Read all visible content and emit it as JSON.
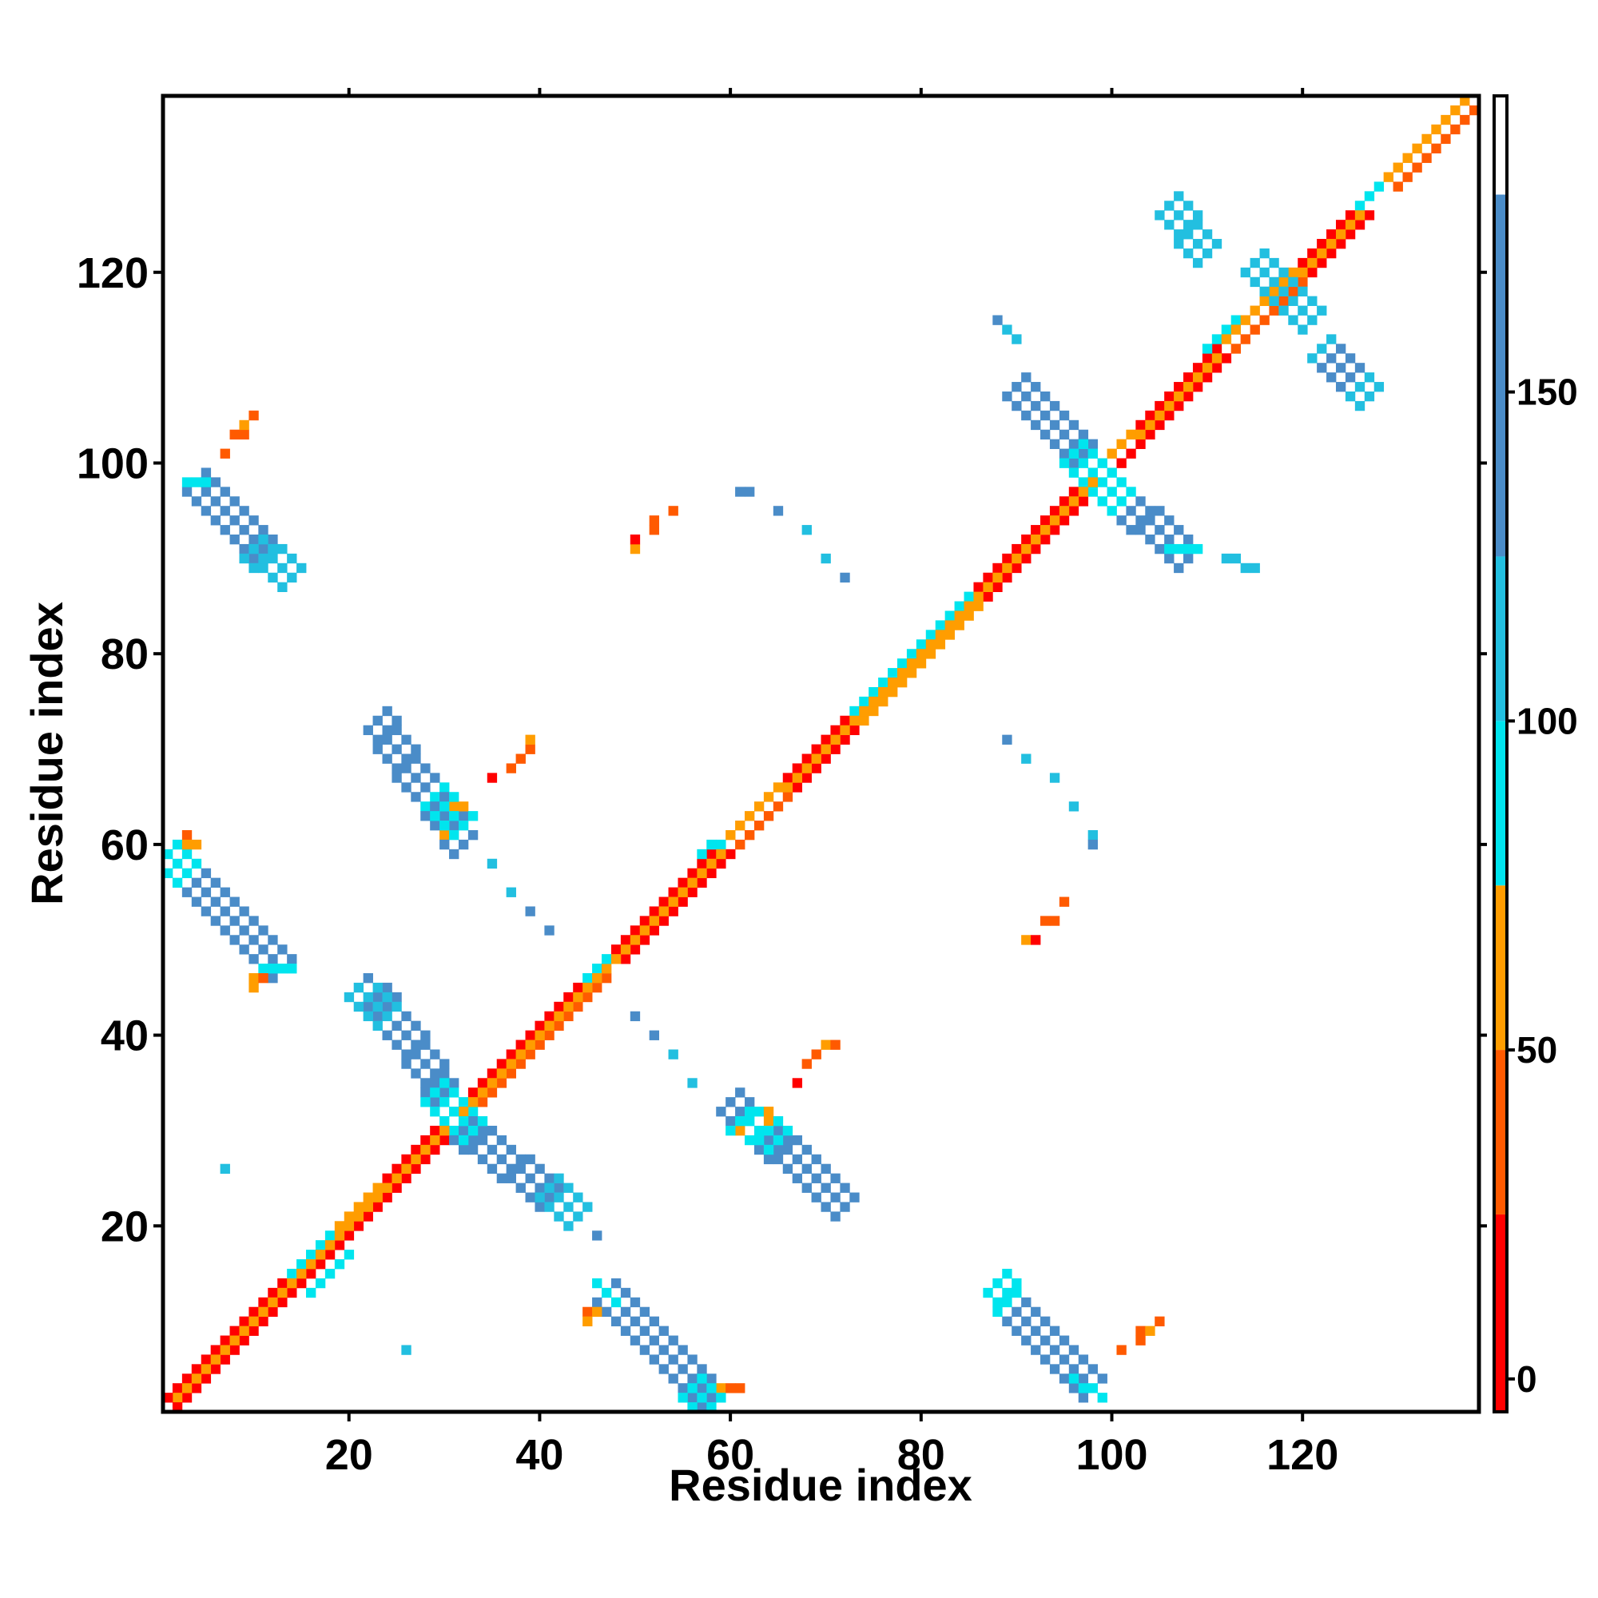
{
  "chart_data": {
    "type": "heatmap",
    "title": "",
    "xlabel": "Residue index",
    "ylabel": "Residue index",
    "xlim": [
      1,
      138
    ],
    "ylim": [
      1,
      138
    ],
    "xticks": [
      20,
      40,
      60,
      80,
      100,
      120
    ],
    "yticks": [
      20,
      40,
      60,
      80,
      100,
      120
    ],
    "colorbar": {
      "min": -5,
      "max": 195,
      "ticks": [
        0,
        50,
        100,
        150
      ],
      "bands": [
        {
          "from": -5,
          "to": 25,
          "color": "#ff0000"
        },
        {
          "from": 25,
          "to": 50,
          "color": "#ff5a00"
        },
        {
          "from": 50,
          "to": 75,
          "color": "#ff9d00"
        },
        {
          "from": 75,
          "to": 100,
          "color": "#00e5ee"
        },
        {
          "from": 100,
          "to": 125,
          "color": "#22bfe0"
        },
        {
          "from": 125,
          "to": 180,
          "color": "#4a8cc8"
        },
        {
          "from": 180,
          "to": 195,
          "color": "#ffffff"
        }
      ]
    },
    "palette": {
      "red": "#ff0000",
      "redorange": "#ff5a00",
      "orange": "#ff9d00",
      "cyan": "#00e5ee",
      "lightblue": "#22bfe0",
      "steelblue": "#4a8cc8"
    },
    "segments": [
      {
        "x0": 2,
        "y0": 3,
        "x1": 30,
        "y1": 31,
        "w": 1,
        "c": "red"
      },
      {
        "x0": 3,
        "y0": 2,
        "x1": 31,
        "y1": 30,
        "w": 1,
        "c": "red"
      },
      {
        "x0": 2,
        "y0": 2,
        "x1": 30,
        "y1": 30,
        "w": 1,
        "c": "orange"
      },
      {
        "x0": 14,
        "y0": 15,
        "x1": 19,
        "y1": 20,
        "w": 1,
        "c": "cyan"
      },
      {
        "x0": 16,
        "y0": 13,
        "x1": 20,
        "y1": 17,
        "w": 1,
        "c": "cyan"
      },
      {
        "x0": 19,
        "y0": 20,
        "x1": 23,
        "y1": 24,
        "w": 1,
        "c": "orange"
      },
      {
        "x0": 32,
        "y0": 33,
        "x1": 46,
        "y1": 47,
        "w": 1,
        "c": "red"
      },
      {
        "x0": 33,
        "y0": 32,
        "x1": 47,
        "y1": 46,
        "w": 1,
        "c": "redorange"
      },
      {
        "x0": 32,
        "y0": 32,
        "x1": 47,
        "y1": 47,
        "w": 1,
        "c": "orange"
      },
      {
        "x0": 45,
        "y0": 46,
        "x1": 48,
        "y1": 49,
        "w": 1,
        "c": "cyan"
      },
      {
        "x0": 48,
        "y0": 49,
        "x1": 59,
        "y1": 60,
        "w": 1,
        "c": "red"
      },
      {
        "x0": 49,
        "y0": 48,
        "x1": 60,
        "y1": 59,
        "w": 1,
        "c": "red"
      },
      {
        "x0": 48,
        "y0": 48,
        "x1": 59,
        "y1": 59,
        "w": 1,
        "c": "orange"
      },
      {
        "x0": 57,
        "y0": 59,
        "x1": 60,
        "y1": 61,
        "w": 1,
        "c": "cyan"
      },
      {
        "x0": 60,
        "y0": 61,
        "x1": 66,
        "y1": 67,
        "w": 1,
        "c": "orange"
      },
      {
        "x0": 61,
        "y0": 60,
        "x1": 67,
        "y1": 66,
        "w": 1,
        "c": "redorange"
      },
      {
        "x0": 66,
        "y0": 67,
        "x1": 73,
        "y1": 74,
        "w": 1,
        "c": "red"
      },
      {
        "x0": 67,
        "y0": 66,
        "x1": 74,
        "y1": 73,
        "w": 1,
        "c": "red"
      },
      {
        "x0": 66,
        "y0": 66,
        "x1": 73,
        "y1": 73,
        "w": 1,
        "c": "orange"
      },
      {
        "x0": 73,
        "y0": 74,
        "x1": 86,
        "y1": 87,
        "w": 1,
        "c": "cyan"
      },
      {
        "x0": 74,
        "y0": 73,
        "x1": 87,
        "y1": 86,
        "w": 1,
        "c": "orange"
      },
      {
        "x0": 73,
        "y0": 73,
        "x1": 86,
        "y1": 86,
        "w": 1,
        "c": "orange"
      },
      {
        "x0": 86,
        "y0": 87,
        "x1": 98,
        "y1": 99,
        "w": 1,
        "c": "red"
      },
      {
        "x0": 87,
        "y0": 86,
        "x1": 99,
        "y1": 98,
        "w": 1,
        "c": "red"
      },
      {
        "x0": 86,
        "y0": 86,
        "x1": 98,
        "y1": 98,
        "w": 1,
        "c": "orange"
      },
      {
        "x0": 98,
        "y0": 99,
        "x1": 103,
        "y1": 104,
        "w": 1,
        "c": "orange"
      },
      {
        "x0": 99,
        "y0": 98,
        "x1": 104,
        "y1": 103,
        "w": 1,
        "c": "red"
      },
      {
        "x0": 103,
        "y0": 104,
        "x1": 111,
        "y1": 112,
        "w": 1,
        "c": "red"
      },
      {
        "x0": 104,
        "y0": 103,
        "x1": 112,
        "y1": 111,
        "w": 1,
        "c": "red"
      },
      {
        "x0": 103,
        "y0": 103,
        "x1": 111,
        "y1": 111,
        "w": 1,
        "c": "orange"
      },
      {
        "x0": 110,
        "y0": 112,
        "x1": 113,
        "y1": 115,
        "w": 1,
        "c": "cyan"
      },
      {
        "x0": 112,
        "y0": 113,
        "x1": 120,
        "y1": 121,
        "w": 1,
        "c": "orange"
      },
      {
        "x0": 113,
        "y0": 112,
        "x1": 121,
        "y1": 120,
        "w": 1,
        "c": "redorange"
      },
      {
        "x0": 120,
        "y0": 121,
        "x1": 126,
        "y1": 127,
        "w": 1,
        "c": "red"
      },
      {
        "x0": 121,
        "y0": 120,
        "x1": 127,
        "y1": 126,
        "w": 1,
        "c": "red"
      },
      {
        "x0": 120,
        "y0": 120,
        "x1": 126,
        "y1": 126,
        "w": 1,
        "c": "orange"
      },
      {
        "x0": 126,
        "y0": 127,
        "x1": 129,
        "y1": 130,
        "w": 1,
        "c": "cyan"
      },
      {
        "x0": 129,
        "y0": 130,
        "x1": 137,
        "y1": 138,
        "w": 1,
        "c": "orange"
      },
      {
        "x0": 130,
        "y0": 129,
        "x1": 138,
        "y1": 137,
        "w": 1,
        "c": "redorange"
      },
      {
        "x0": 2,
        "y0": 58,
        "x1": 13,
        "y1": 47,
        "w": 3,
        "c": "steelblue"
      },
      {
        "x0": 1,
        "y0": 59,
        "x1": 3,
        "y1": 57,
        "w": 2,
        "c": "cyan"
      },
      {
        "x0": 11,
        "y0": 47,
        "x1": 14,
        "y1": 47,
        "w": 1,
        "c": "cyan"
      },
      {
        "x0": 4,
        "y0": 98,
        "x1": 13,
        "y1": 89,
        "w": 3,
        "c": "steelblue"
      },
      {
        "x0": 3,
        "y0": 98,
        "x1": 5,
        "y1": 98,
        "w": 1,
        "c": "cyan"
      },
      {
        "x0": 10,
        "y0": 91,
        "x1": 14,
        "y1": 88,
        "w": 2,
        "c": "lightblue"
      },
      {
        "x0": 23,
        "y0": 44,
        "x1": 30,
        "y1": 34,
        "w": 3,
        "c": "steelblue"
      },
      {
        "x0": 21,
        "y0": 45,
        "x1": 24,
        "y1": 42,
        "w": 2,
        "c": "lightblue"
      },
      {
        "x0": 29,
        "y0": 34,
        "x1": 31,
        "y1": 32,
        "w": 2,
        "c": "cyan"
      },
      {
        "x0": 23,
        "y0": 73,
        "x1": 32,
        "y1": 60,
        "w": 3,
        "c": "steelblue"
      },
      {
        "x0": 29,
        "y0": 65,
        "x1": 32,
        "y1": 62,
        "w": 2,
        "c": "cyan"
      },
      {
        "x0": 32,
        "y0": 30,
        "x1": 43,
        "y1": 22,
        "w": 3,
        "c": "steelblue"
      },
      {
        "x0": 31,
        "y0": 32,
        "x1": 33,
        "y1": 30,
        "w": 2,
        "c": "cyan"
      },
      {
        "x0": 41,
        "y0": 24,
        "x1": 44,
        "y1": 21,
        "w": 2,
        "c": "lightblue"
      },
      {
        "x0": 47,
        "y0": 13,
        "x1": 58,
        "y1": 2,
        "w": 3,
        "c": "steelblue"
      },
      {
        "x0": 46,
        "y0": 14,
        "x1": 48,
        "y1": 12,
        "w": 1,
        "c": "cyan"
      },
      {
        "x0": 56,
        "y0": 3,
        "x1": 58,
        "y1": 1,
        "w": 2,
        "c": "cyan"
      },
      {
        "x0": 60,
        "y0": 33,
        "x1": 72,
        "y1": 22,
        "w": 3,
        "c": "steelblue"
      },
      {
        "x0": 61,
        "y0": 31,
        "x1": 65,
        "y1": 29,
        "w": 2,
        "c": "cyan"
      },
      {
        "x0": 88,
        "y0": 14,
        "x1": 90,
        "y1": 11,
        "w": 2,
        "c": "cyan"
      },
      {
        "x0": 90,
        "y0": 11,
        "x1": 98,
        "y1": 3,
        "w": 3,
        "c": "steelblue"
      },
      {
        "x0": 96,
        "y0": 4,
        "x1": 99,
        "y1": 2,
        "w": 1,
        "c": "cyan"
      },
      {
        "x0": 90,
        "y0": 108,
        "x1": 97,
        "y1": 101,
        "w": 3,
        "c": "steelblue"
      },
      {
        "x0": 96,
        "y0": 101,
        "x1": 99,
        "y1": 98,
        "w": 2,
        "c": "cyan"
      },
      {
        "x0": 100,
        "y0": 97,
        "x1": 108,
        "y1": 90,
        "w": 3,
        "c": "steelblue"
      },
      {
        "x0": 99,
        "y0": 98,
        "x1": 101,
        "y1": 96,
        "w": 2,
        "c": "cyan"
      },
      {
        "x0": 106,
        "y0": 91,
        "x1": 109,
        "y1": 91,
        "w": 1,
        "c": "cyan"
      },
      {
        "x0": 106,
        "y0": 127,
        "x1": 110,
        "y1": 122,
        "w": 2,
        "c": "lightblue"
      },
      {
        "x0": 115,
        "y0": 121,
        "x1": 121,
        "y1": 115,
        "w": 2,
        "c": "lightblue"
      },
      {
        "x0": 122,
        "y0": 112,
        "x1": 127,
        "y1": 107,
        "w": 2,
        "c": "lightblue"
      },
      {
        "x0": 123,
        "y0": 111,
        "x1": 125,
        "y1": 109,
        "w": 2,
        "c": "steelblue"
      },
      {
        "x0": 112,
        "y0": 90,
        "x1": 115,
        "y1": 89,
        "w": 1,
        "c": "lightblue"
      }
    ],
    "cells": [
      {
        "x": 35,
        "y": 58,
        "c": "lightblue"
      },
      {
        "x": 37,
        "y": 55,
        "c": "lightblue"
      },
      {
        "x": 39,
        "y": 53,
        "c": "steelblue"
      },
      {
        "x": 41,
        "y": 51,
        "c": "steelblue"
      },
      {
        "x": 50,
        "y": 42,
        "c": "steelblue"
      },
      {
        "x": 52,
        "y": 40,
        "c": "steelblue"
      },
      {
        "x": 54,
        "y": 38,
        "c": "lightblue"
      },
      {
        "x": 56,
        "y": 35,
        "c": "lightblue"
      },
      {
        "x": 61,
        "y": 97,
        "c": "steelblue"
      },
      {
        "x": 62,
        "y": 97,
        "c": "steelblue"
      },
      {
        "x": 65,
        "y": 95,
        "c": "steelblue"
      },
      {
        "x": 68,
        "y": 93,
        "c": "lightblue"
      },
      {
        "x": 70,
        "y": 90,
        "c": "lightblue"
      },
      {
        "x": 72,
        "y": 88,
        "c": "steelblue"
      },
      {
        "x": 89,
        "y": 71,
        "c": "steelblue"
      },
      {
        "x": 91,
        "y": 69,
        "c": "lightblue"
      },
      {
        "x": 94,
        "y": 67,
        "c": "lightblue"
      },
      {
        "x": 96,
        "y": 64,
        "c": "lightblue"
      },
      {
        "x": 98,
        "y": 61,
        "c": "lightblue"
      },
      {
        "x": 98,
        "y": 60,
        "c": "steelblue"
      },
      {
        "x": 7,
        "y": 26,
        "c": "lightblue"
      },
      {
        "x": 26,
        "y": 7,
        "c": "lightblue"
      },
      {
        "x": 22,
        "y": 46,
        "c": "steelblue"
      },
      {
        "x": 46,
        "y": 19,
        "c": "steelblue"
      },
      {
        "x": 88,
        "y": 115,
        "c": "steelblue"
      },
      {
        "x": 89,
        "y": 114,
        "c": "lightblue"
      },
      {
        "x": 90,
        "y": 113,
        "c": "lightblue"
      },
      {
        "x": 50,
        "y": 91,
        "c": "orange"
      },
      {
        "x": 50,
        "y": 92,
        "c": "red"
      },
      {
        "x": 52,
        "y": 93,
        "c": "redorange"
      },
      {
        "x": 52,
        "y": 94,
        "c": "redorange"
      },
      {
        "x": 54,
        "y": 95,
        "c": "redorange"
      },
      {
        "x": 35,
        "y": 67,
        "c": "red"
      },
      {
        "x": 37,
        "y": 68,
        "c": "redorange"
      },
      {
        "x": 38,
        "y": 69,
        "c": "redorange"
      },
      {
        "x": 39,
        "y": 70,
        "c": "redorange"
      },
      {
        "x": 39,
        "y": 71,
        "c": "orange"
      },
      {
        "x": 67,
        "y": 35,
        "c": "red"
      },
      {
        "x": 68,
        "y": 37,
        "c": "redorange"
      },
      {
        "x": 69,
        "y": 38,
        "c": "redorange"
      },
      {
        "x": 70,
        "y": 39,
        "c": "orange"
      },
      {
        "x": 71,
        "y": 39,
        "c": "redorange"
      },
      {
        "x": 91,
        "y": 50,
        "c": "orange"
      },
      {
        "x": 92,
        "y": 50,
        "c": "red"
      },
      {
        "x": 93,
        "y": 52,
        "c": "redorange"
      },
      {
        "x": 94,
        "y": 52,
        "c": "redorange"
      },
      {
        "x": 95,
        "y": 54,
        "c": "redorange"
      },
      {
        "x": 7,
        "y": 101,
        "c": "redorange"
      },
      {
        "x": 8,
        "y": 103,
        "c": "redorange"
      },
      {
        "x": 9,
        "y": 103,
        "c": "redorange"
      },
      {
        "x": 9,
        "y": 104,
        "c": "orange"
      },
      {
        "x": 10,
        "y": 105,
        "c": "redorange"
      },
      {
        "x": 101,
        "y": 7,
        "c": "redorange"
      },
      {
        "x": 103,
        "y": 8,
        "c": "redorange"
      },
      {
        "x": 103,
        "y": 9,
        "c": "redorange"
      },
      {
        "x": 104,
        "y": 9,
        "c": "orange"
      },
      {
        "x": 105,
        "y": 10,
        "c": "redorange"
      },
      {
        "x": 3,
        "y": 61,
        "c": "redorange"
      },
      {
        "x": 3,
        "y": 60,
        "c": "orange"
      },
      {
        "x": 4,
        "y": 60,
        "c": "orange"
      },
      {
        "x": 10,
        "y": 45,
        "c": "orange"
      },
      {
        "x": 10,
        "y": 46,
        "c": "orange"
      },
      {
        "x": 11,
        "y": 46,
        "c": "redorange"
      },
      {
        "x": 31,
        "y": 64,
        "c": "orange"
      },
      {
        "x": 32,
        "y": 64,
        "c": "orange"
      },
      {
        "x": 30,
        "y": 61,
        "c": "orange"
      },
      {
        "x": 64,
        "y": 31,
        "c": "orange"
      },
      {
        "x": 64,
        "y": 32,
        "c": "orange"
      },
      {
        "x": 61,
        "y": 30,
        "c": "orange"
      },
      {
        "x": 45,
        "y": 11,
        "c": "redorange"
      },
      {
        "x": 45,
        "y": 10,
        "c": "orange"
      },
      {
        "x": 46,
        "y": 11,
        "c": "orange"
      },
      {
        "x": 59,
        "y": 3,
        "c": "orange"
      },
      {
        "x": 60,
        "y": 3,
        "c": "redorange"
      },
      {
        "x": 61,
        "y": 3,
        "c": "redorange"
      },
      {
        "x": 2,
        "y": 1,
        "c": "red"
      },
      {
        "x": 1,
        "y": 2,
        "c": "red"
      }
    ]
  }
}
